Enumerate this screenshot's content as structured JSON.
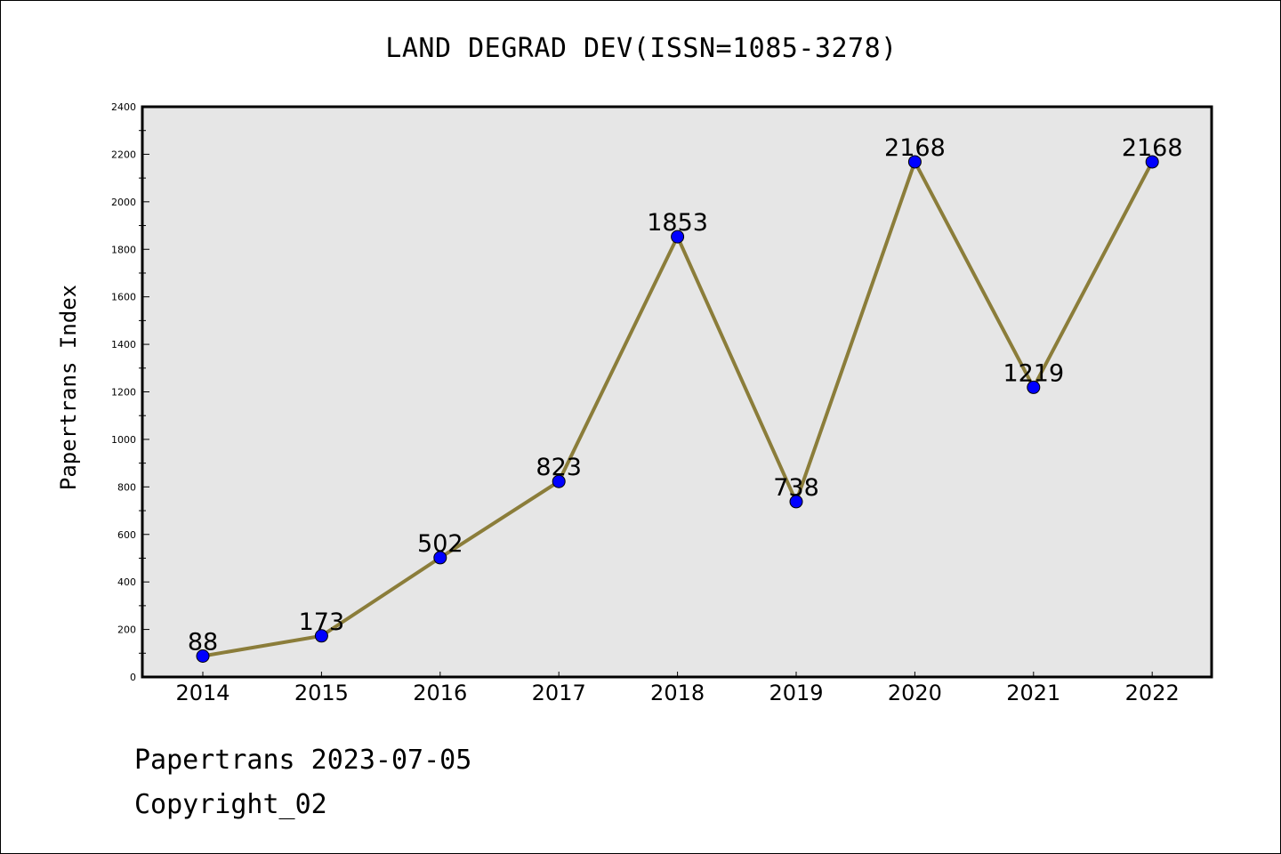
{
  "chart_data": {
    "type": "line",
    "title": "LAND DEGRAD DEV(ISSN=1085-3278)",
    "xlabel": "",
    "ylabel": "Papertrans Index",
    "categories": [
      "2014",
      "2015",
      "2016",
      "2017",
      "2018",
      "2019",
      "2020",
      "2021",
      "2022"
    ],
    "series": [
      {
        "values": [
          88,
          173,
          502,
          823,
          1853,
          738,
          2168,
          1219,
          2168
        ]
      }
    ],
    "data_labels": [
      "88",
      "173",
      "502",
      "823",
      "1853",
      "738",
      "2168",
      "1219",
      "2168"
    ],
    "ylim": [
      0,
      2400
    ],
    "yticks": [
      0,
      200,
      400,
      600,
      800,
      1000,
      1200,
      1400,
      1600,
      1800,
      2000,
      2200,
      2400
    ],
    "grid": false,
    "colors": {
      "line": "#8b7d3a",
      "marker": "#0000ff",
      "plot_background": "#e6e6e6"
    }
  },
  "footer": {
    "line1": "Papertrans 2023-07-05",
    "line2": "Copyright_02"
  }
}
